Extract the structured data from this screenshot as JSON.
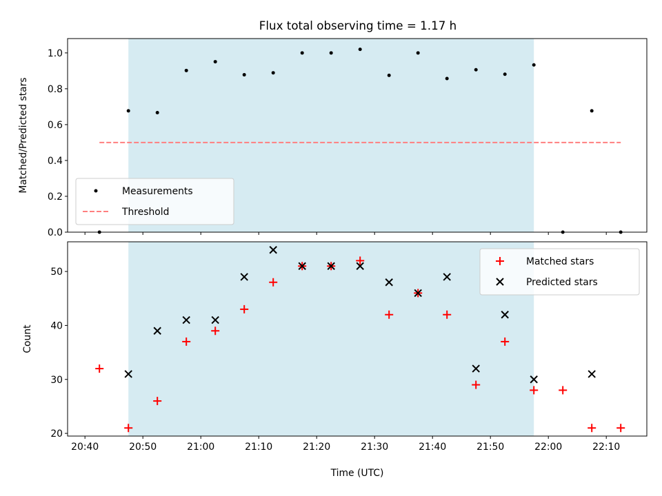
{
  "figure": {
    "title": "Flux total observing time = 1.17 h"
  },
  "chart_data": [
    {
      "type": "scatter",
      "title": "Flux total observing time = 1.17 h",
      "xlabel": "",
      "ylabel": "Matched/Predicted stars",
      "xlim": [
        "20:37",
        "22:17"
      ],
      "ylim": [
        0.0,
        1.08
      ],
      "yticks": [
        0.0,
        0.2,
        0.4,
        0.6,
        0.8,
        1.0
      ],
      "ytick_labels": [
        "0.0",
        "0.2",
        "0.4",
        "0.6",
        "0.8",
        "1.0"
      ],
      "highlight_span": [
        "20:47:30",
        "21:57:30"
      ],
      "highlight_color": "#add8e6",
      "legend_position": "lower-left",
      "series": [
        {
          "name": "Measurements",
          "marker": "dot",
          "color": "#000000",
          "x": [
            "20:42:30",
            "20:47:30",
            "20:52:30",
            "20:57:30",
            "21:02:30",
            "21:07:30",
            "21:12:30",
            "21:17:30",
            "21:22:30",
            "21:27:30",
            "21:32:30",
            "21:37:30",
            "21:42:30",
            "21:47:30",
            "21:52:30",
            "21:57:30",
            "22:02:30",
            "22:07:30",
            "22:12:30"
          ],
          "y": [
            0.0,
            0.677,
            0.667,
            0.902,
            0.951,
            0.878,
            0.889,
            1.0,
            1.0,
            1.02,
            0.875,
            1.0,
            0.857,
            0.906,
            0.881,
            0.933,
            0.0,
            0.677,
            0.0
          ]
        },
        {
          "name": "Threshold",
          "style": "dashed-line",
          "color": "#ff7f7f",
          "x": [
            "20:42:30",
            "22:12:30"
          ],
          "y": [
            0.5,
            0.5
          ]
        }
      ]
    },
    {
      "type": "scatter",
      "title": "",
      "xlabel": "Time (UTC)",
      "ylabel": "Count",
      "xlim": [
        "20:37",
        "22:17"
      ],
      "xtick_labels": [
        "20:40",
        "20:50",
        "21:00",
        "21:10",
        "21:20",
        "21:30",
        "21:40",
        "21:50",
        "22:00",
        "22:10"
      ],
      "ylim": [
        19.5,
        55.5
      ],
      "yticks": [
        20,
        30,
        40,
        50
      ],
      "ytick_labels": [
        "20",
        "30",
        "40",
        "50"
      ],
      "highlight_span": [
        "20:47:30",
        "21:57:30"
      ],
      "highlight_color": "#add8e6",
      "legend_position": "upper-right",
      "series": [
        {
          "name": "Matched stars",
          "marker": "plus",
          "color": "#ff0000",
          "x": [
            "20:42:30",
            "20:47:30",
            "20:52:30",
            "20:57:30",
            "21:02:30",
            "21:07:30",
            "21:12:30",
            "21:17:30",
            "21:22:30",
            "21:27:30",
            "21:32:30",
            "21:37:30",
            "21:42:30",
            "21:47:30",
            "21:52:30",
            "21:57:30",
            "22:02:30",
            "22:07:30",
            "22:12:30"
          ],
          "y": [
            32,
            21,
            26,
            37,
            39,
            43,
            48,
            51,
            51,
            52,
            42,
            46,
            42,
            29,
            37,
            28,
            28,
            21,
            21
          ]
        },
        {
          "name": "Predicted stars",
          "marker": "x",
          "color": "#000000",
          "x": [
            "20:47:30",
            "20:52:30",
            "20:57:30",
            "21:02:30",
            "21:07:30",
            "21:12:30",
            "21:17:30",
            "21:22:30",
            "21:27:30",
            "21:32:30",
            "21:37:30",
            "21:42:30",
            "21:47:30",
            "21:52:30",
            "21:57:30",
            "22:07:30"
          ],
          "y": [
            31,
            39,
            41,
            41,
            49,
            54,
            51,
            51,
            51,
            48,
            46,
            49,
            32,
            42,
            30,
            31
          ]
        }
      ]
    }
  ]
}
